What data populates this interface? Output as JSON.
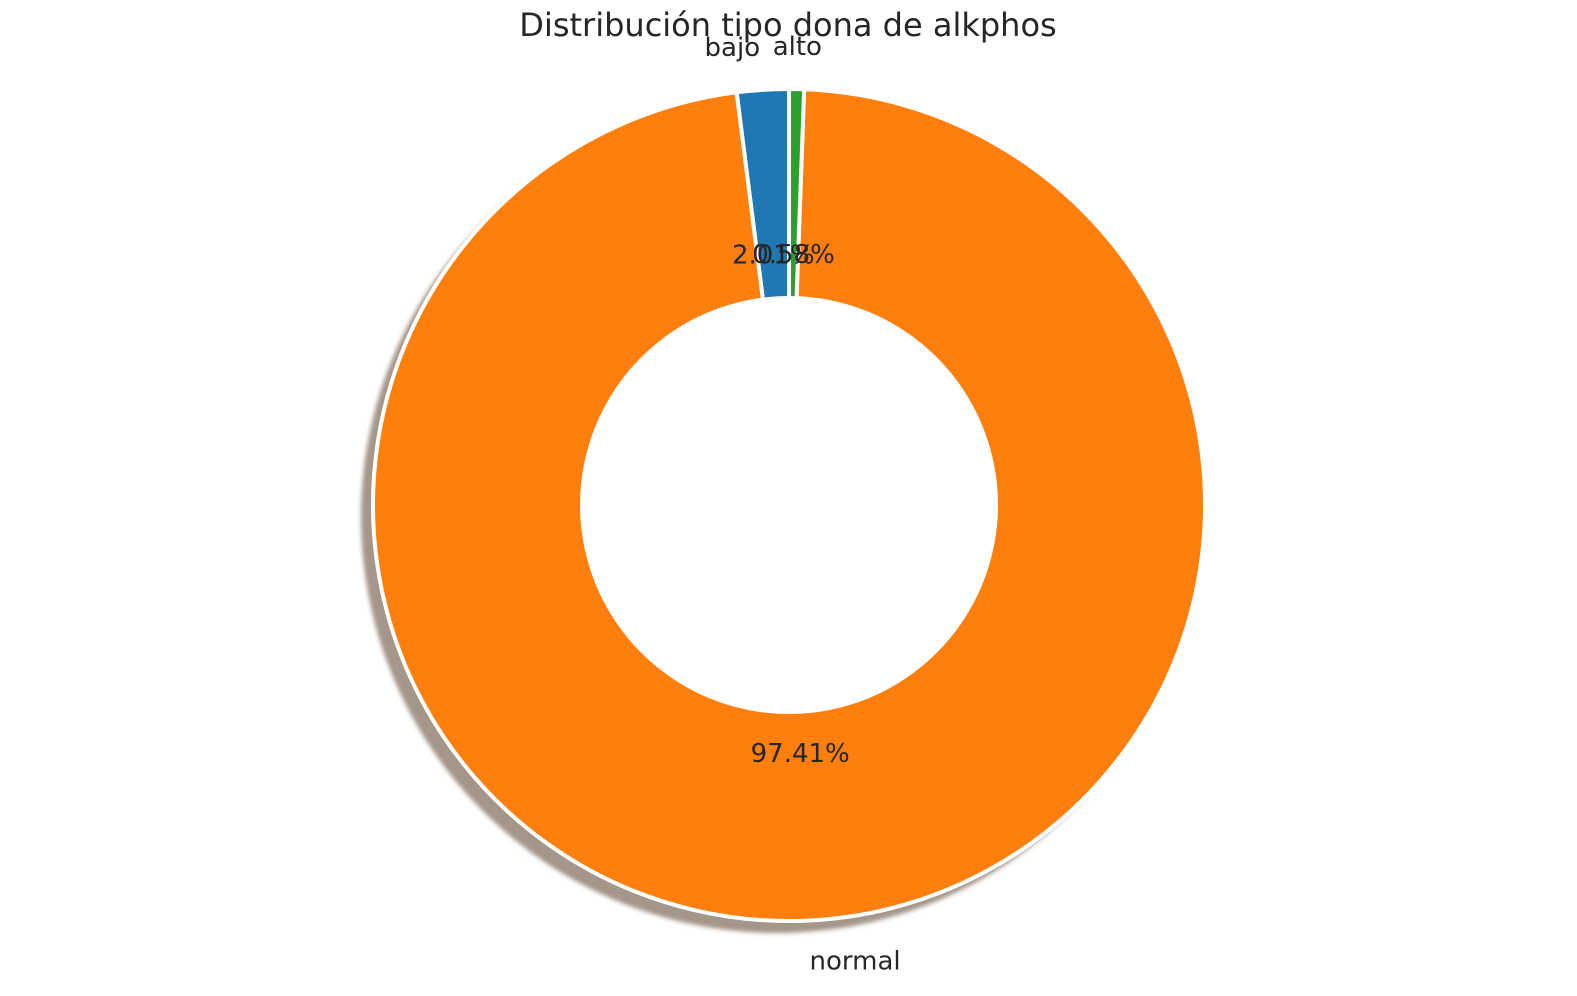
{
  "chart_data": {
    "type": "pie",
    "title": "Distribución tipo dona de alkphos",
    "donut": true,
    "shadow": true,
    "start_angle_deg": 90,
    "direction": "counterclockwise",
    "slices": [
      {
        "label": "bajo",
        "value": 2.01,
        "pct_label": "2.01%",
        "color": "#1f77b4"
      },
      {
        "label": "normal",
        "value": 97.41,
        "pct_label": "97.41%",
        "color": "#ff7f0e"
      },
      {
        "label": "alto",
        "value": 0.58,
        "pct_label": "0.58%",
        "color": "#2ca02c"
      }
    ],
    "legend": "none",
    "grid": false
  }
}
